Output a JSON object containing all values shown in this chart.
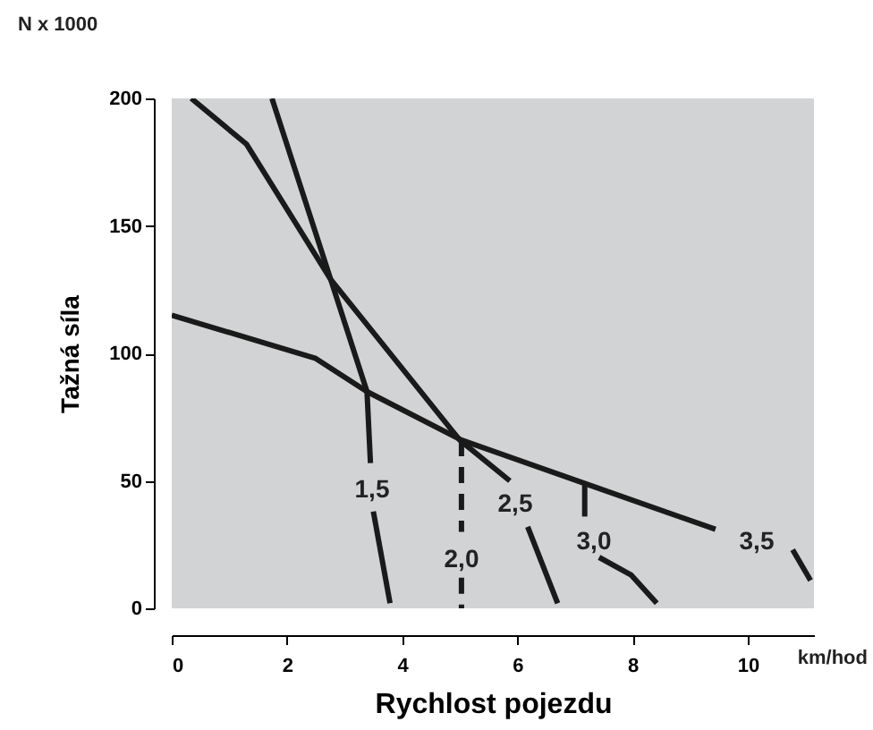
{
  "chart_data": {
    "type": "line",
    "xlabel": "Rychlost pojezdu",
    "ylabel": "Tažná síla",
    "xlim": [
      0,
      11.15
    ],
    "ylim": [
      0,
      200
    ],
    "xticks": [
      0,
      2,
      4,
      6,
      8,
      10
    ],
    "yticks": [
      0,
      50,
      100,
      150,
      200
    ],
    "grid": false,
    "marker": "none",
    "series": [
      {
        "color": "#1a1a1a",
        "line_style": "solid",
        "x": [
          0.34,
          1.3,
          2.76,
          5.0,
          5.87
        ],
        "values": [
          200,
          182,
          129,
          66,
          50
        ]
      },
      {
        "color": "#1a1a1a",
        "line_style": "solid",
        "x": [
          6.18,
          6.7
        ],
        "values": [
          32,
          2
        ]
      },
      {
        "color": "#1a1a1a",
        "line_style": "solid",
        "x": [
          1.74,
          2.76,
          3.39,
          3.45
        ],
        "values": [
          200,
          129,
          85,
          57
        ]
      },
      {
        "color": "#1a1a1a",
        "line_style": "solid",
        "x": [
          3.5,
          3.79
        ],
        "values": [
          38,
          2
        ]
      },
      {
        "color": "#1a1a1a",
        "line_style": "solid",
        "x": [
          0,
          2.5,
          3.39,
          5.03,
          7.17,
          9.44
        ],
        "values": [
          115,
          98,
          85,
          66,
          49,
          31
        ]
      },
      {
        "color": "#1a1a1a",
        "line_style": "solid",
        "x": [
          10.78,
          11.09
        ],
        "values": [
          23,
          11
        ]
      },
      {
        "color": "#1a1a1a",
        "line_style": "dashed",
        "x": [
          5.03,
          5.03
        ],
        "values": [
          66,
          30
        ]
      },
      {
        "color": "#1a1a1a",
        "line_style": "dashed",
        "x": [
          5.03,
          5.03
        ],
        "values": [
          12,
          0
        ]
      },
      {
        "color": "#1a1a1a",
        "line_style": "solid",
        "x": [
          7.17,
          7.17
        ],
        "values": [
          49,
          36
        ]
      },
      {
        "color": "#1a1a1a",
        "line_style": "solid",
        "x": [
          7.42,
          7.98,
          8.42
        ],
        "values": [
          20,
          13,
          2
        ]
      }
    ],
    "annotations": [
      "N x 1000",
      "km/hod",
      "1,5",
      "2,0",
      "2,5",
      "3,0",
      "3,5"
    ]
  }
}
